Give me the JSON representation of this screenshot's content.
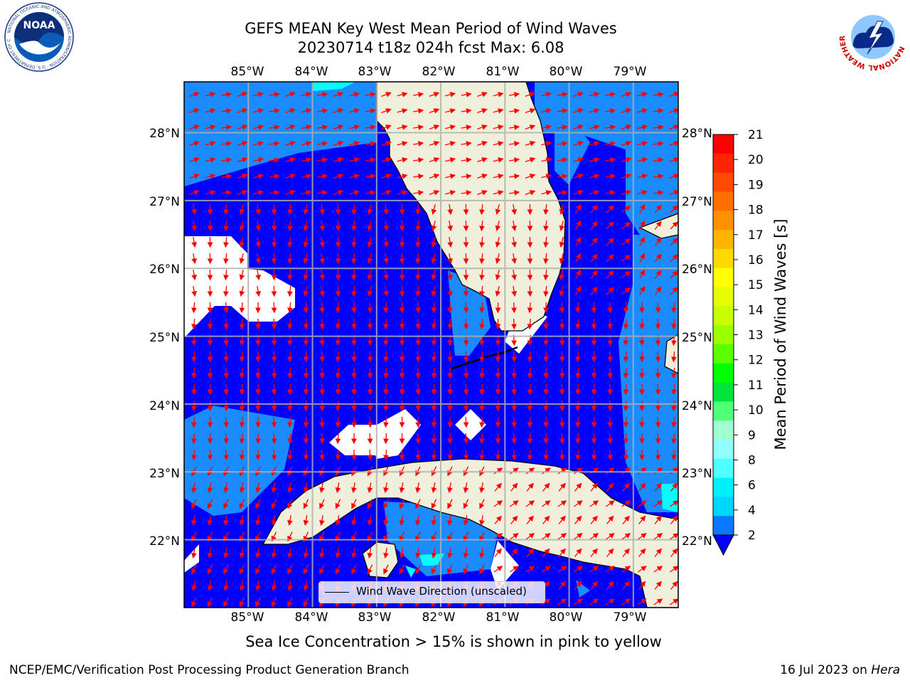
{
  "title": {
    "line1": "GEFS MEAN Key West Mean Period of Wind Waves",
    "line2": "20230714 t18z 024h fcst   Max: 6.08"
  },
  "logos": {
    "noaa_text": "NOAA",
    "noaa_ring_text": "NATIONAL OCEANIC AND ATMOSPHERIC ADMINISTRATION · U.S. DEPARTMENT OF COMMERCE",
    "nws_ring_text": "NATIONAL WEATHER SERVICE"
  },
  "map": {
    "lon_labels": [
      "85°W",
      "84°W",
      "83°W",
      "82°W",
      "81°W",
      "80°W",
      "79°W"
    ],
    "lat_labels": [
      "28°N",
      "27°N",
      "26°N",
      "25°N",
      "24°N",
      "23°N",
      "22°N"
    ],
    "lon_range": [
      -86.0,
      -78.3
    ],
    "lat_range": [
      21.0,
      28.75
    ],
    "gridlines": true,
    "colors": {
      "ocean_deep": "#0000ff",
      "ocean_mid": "#1a8cff",
      "ocean_light": "#00ffff",
      "land": "#efefdc",
      "arrows": "#ff0000",
      "nodata": "#ffffff"
    },
    "legend_label": "Wind Wave Direction (unscaled)"
  },
  "colorbar": {
    "label": "Mean Period of Wind Waves [s]",
    "ticks": [
      "21",
      "20",
      "19",
      "18",
      "17",
      "16",
      "15",
      "14",
      "13",
      "12",
      "11",
      "10",
      "9",
      "8",
      "6",
      "4",
      "2"
    ],
    "colors": [
      "#ff0000",
      "#ff2400",
      "#ff4a00",
      "#ff6e00",
      "#ff9000",
      "#ffb400",
      "#ffd800",
      "#ffff00",
      "#e6ff00",
      "#c8ff00",
      "#9cff00",
      "#5aff00",
      "#00ff00",
      "#00e43c",
      "#50ff78",
      "#a0ffd0",
      "#90ffff",
      "#50ffff",
      "#00f0ff",
      "#00d6ff",
      "#0a78ff"
    ],
    "min_arrow_color": "#0000ff"
  },
  "notes": {
    "sea_ice": "Sea Ice Concentration > 15% is shown in pink to yellow"
  },
  "footer": {
    "left": "NCEP/EMC/Verification Post Processing Product Generation Branch",
    "right_date": "16 Jul 2023 on ",
    "right_host": "Hera"
  }
}
